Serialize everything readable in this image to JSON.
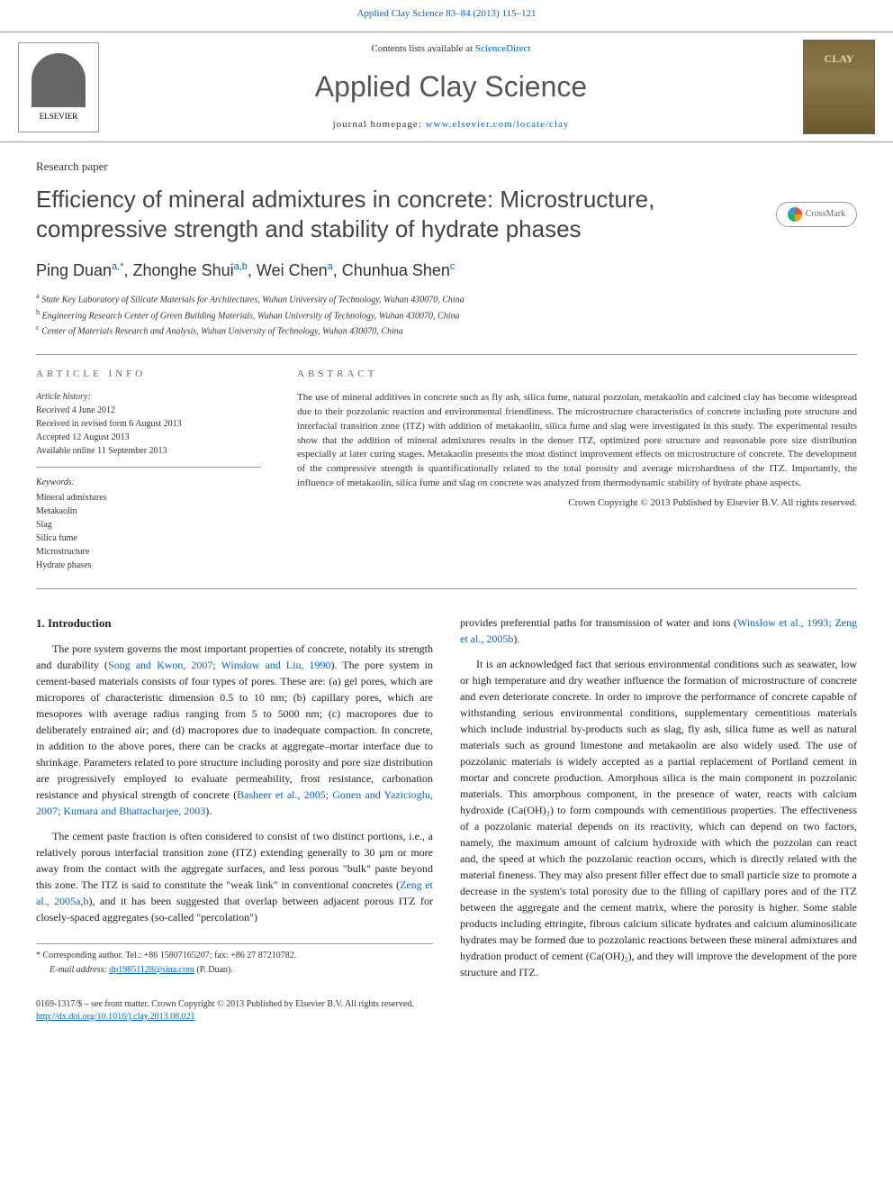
{
  "journal_link_top": "Applied Clay Science 83–84 (2013) 115–121",
  "header": {
    "contents_prefix": "Contents lists available at ",
    "contents_link": "ScienceDirect",
    "journal_name": "Applied Clay Science",
    "homepage_prefix": "journal homepage: ",
    "homepage_link": "www.elsevier.com/locate/clay",
    "elsevier": "ELSEVIER"
  },
  "article_type": "Research paper",
  "title": "Efficiency of mineral admixtures in concrete: Microstructure, compressive strength and stability of hydrate phases",
  "crossmark": "CrossMark",
  "authors_html": "Ping Duan",
  "author_sup_1": "a,",
  "author_star": "*",
  "author_2": ", Zhonghe Shui",
  "author_sup_2": "a,b",
  "author_3": ", Wei Chen",
  "author_sup_3": "a",
  "author_4": ", Chunhua Shen",
  "author_sup_4": "c",
  "affiliations": {
    "a": "State Key Laboratory of Silicate Materials for Architectures, Wuhan University of Technology, Wuhan 430070, China",
    "b": "Engineering Research Center of Green Building Materials, Wuhan University of Technology, Wuhan 430070, China",
    "c": "Center of Materials Research and Analysis, Wuhan University of Technology, Wuhan 430070, China"
  },
  "info": {
    "heading": "ARTICLE INFO",
    "history_label": "Article history:",
    "history": [
      "Received 4 June 2012",
      "Received in revised form 6 August 2013",
      "Accepted 12 August 2013",
      "Available online 11 September 2013"
    ],
    "keywords_label": "Keywords:",
    "keywords": [
      "Mineral admixtures",
      "Metakaolin",
      "Slag",
      "Silica fume",
      "Microstructure",
      "Hydrate phases"
    ]
  },
  "abstract": {
    "heading": "ABSTRACT",
    "text": "The use of mineral additives in concrete such as fly ash, silica fume, natural pozzolan, metakaolin and calcined clay has become widespread due to their pozzolanic reaction and environmental friendliness. The microstructure characteristics of concrete including pore structure and interfacial transition zone (ITZ) with addition of metakaolin, silica fume and slag were investigated in this study. The experimental results show that the addition of mineral admixtures results in the denser ITZ, optimized pore structure and reasonable pore size distribution especially at later curing stages. Metakaolin presents the most distinct improvement effects on microstructure of concrete. The development of the compressive strength is quantificationally related to the total porosity and average microhardness of the ITZ. Importantly, the influence of metakaolin, silica fume and slag on concrete was analyzed from thermodynamic stability of hydrate phase aspects.",
    "copyright": "Crown Copyright © 2013 Published by Elsevier B.V. All rights reserved."
  },
  "body": {
    "section1_heading": "1. Introduction",
    "para1_a": "The pore system governs the most important properties of concrete, notably its strength and durability (",
    "para1_ref1": "Song and Kwon, 2007; Winslow and Liu, 1990",
    "para1_b": "). The pore system in cement-based materials consists of four types of pores. These are: (a) gel pores, which are micropores of characteristic dimension 0.5 to 10 nm; (b) capillary pores, which are mesopores with average radius ranging from 5 to 5000 nm; (c) macropores due to deliberately entrained air; and (d) macropores due to inadequate compaction. In concrete, in addition to the above pores, there can be cracks at aggregate–mortar interface due to shrinkage. Parameters related to pore structure including porosity and pore size distribution are progressively employed to evaluate permeability, frost resistance, carbonation resistance and physical strength of concrete (",
    "para1_ref2": "Basheer et al., 2005; Gonen and Yazicioglu, 2007; Kumara and Bhattacharjee, 2003",
    "para1_c": ").",
    "para2_a": "The cement paste fraction is often considered to consist of two distinct portions, i.e., a relatively porous interfacial transition zone (ITZ) extending generally to 30 μm or more away from the contact with the aggregate surfaces, and less porous \"bulk\" paste beyond this zone. The ITZ is said to constitute the \"weak link\" in conventional concretes (",
    "para2_ref1": "Zeng et al., 2005a,b",
    "para2_b": "), and it has been suggested that overlap between adjacent porous ITZ for closely-spaced aggregates (so-called \"percolation\")",
    "para3_a": "provides preferential paths for transmission of water and ions (",
    "para3_ref1": "Winslow et al., 1993; Zeng et al., 2005b",
    "para3_b": ").",
    "para4": "It is an acknowledged fact that serious environmental conditions such as seawater, low or high temperature and dry weather influence the formation of microstructure of concrete and even deteriorate concrete. In order to improve the performance of concrete capable of withstanding serious environmental conditions, supplementary cementitious materials which include industrial by-products such as slag, fly ash, silica fume as well as natural materials such as ground limestone and metakaolin are also widely used. The use of pozzolanic materials is widely accepted as a partial replacement of Portland cement in mortar and concrete production. Amorphous silica is the main component in pozzolanic materials. This amorphous component, in the presence of water, reacts with calcium hydroxide (Ca(OH)₂) to form compounds with cementitious properties. The effectiveness of a pozzolanic material depends on its reactivity, which can depend on two factors, namely, the maximum amount of calcium hydroxide with which the pozzolan can react and, the speed at which the pozzolanic reaction occurs, which is directly related with the material fineness. They may also present filler effect due to small particle size to promote a decrease in the system's total porosity due to the filling of capillary pores and of the ITZ between the aggregate and the cement matrix, where the porosity is higher. Some stable products including ettringite, fibrous calcium silicate hydrates and calcium aluminosilicate hydrates may be formed due to pozzolanic reactions between these mineral admixtures and hydration product of cement (Ca(OH)₂), and they will improve the development of the pore structure and ITZ."
  },
  "footnotes": {
    "corr": "Corresponding author. Tel.: +86 15807165207; fax: +86 27 87210782.",
    "email_label": "E-mail address: ",
    "email": "dp19851128@sina.com",
    "email_suffix": " (P. Duan)."
  },
  "footer": {
    "issn": "0169-1317/$ – see front matter. Crown Copyright © 2013 Published by Elsevier B.V. All rights reserved.",
    "doi": "http://dx.doi.org/10.1016/j.clay.2013.08.021"
  },
  "colors": {
    "link": "#0066cc",
    "text": "#333333",
    "border": "#999999"
  }
}
